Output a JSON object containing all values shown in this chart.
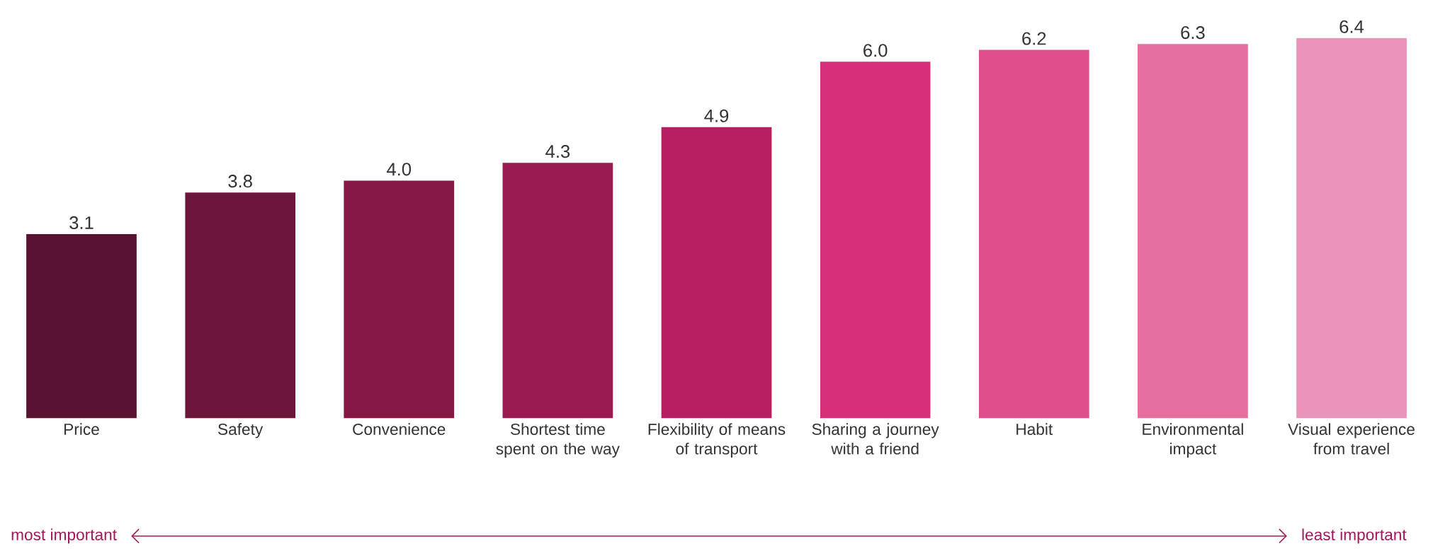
{
  "chart_data": {
    "type": "bar",
    "categories": [
      "Price",
      "Safety",
      "Convenience",
      "Shortest time spent on the way",
      "Flexibility of means of transport",
      "Sharing a journey with a friend",
      "Habit",
      "Environmental impact",
      "Visual experience from travel"
    ],
    "values": [
      3.1,
      3.8,
      4.0,
      4.3,
      4.9,
      6.0,
      6.2,
      6.3,
      6.4
    ],
    "value_labels": [
      "3.1",
      "3.8",
      "4.0",
      "4.3",
      "4.9",
      "6.0",
      "6.2",
      "6.3",
      "6.4"
    ],
    "colors": [
      "#5a1232",
      "#6e153c",
      "#861846",
      "#981c52",
      "#b81f62",
      "#d62e78",
      "#de4f8c",
      "#e56f9f",
      "#ea94bb"
    ],
    "annotations": [
      "most important",
      "least important"
    ]
  }
}
